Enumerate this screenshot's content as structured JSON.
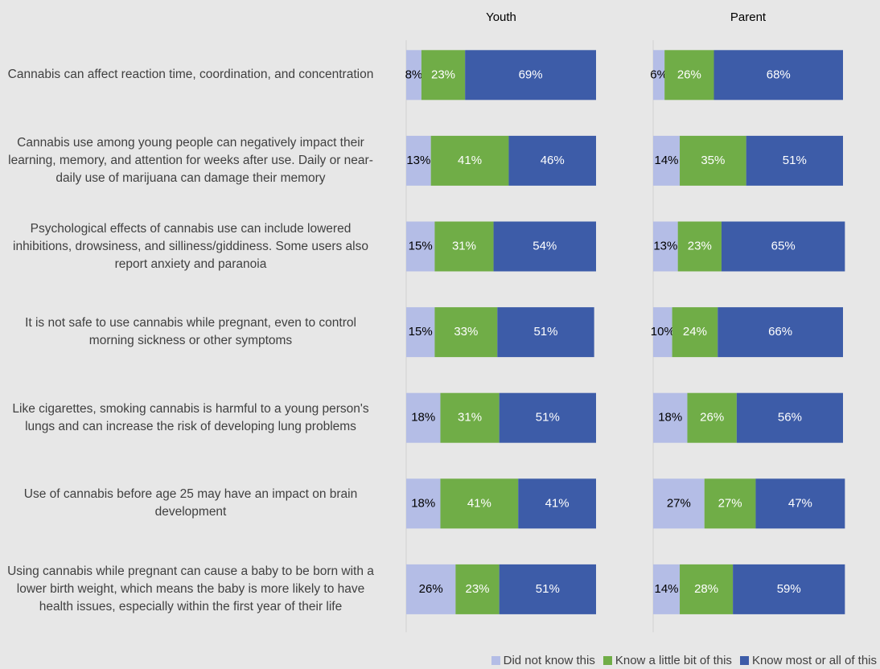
{
  "chart_data": {
    "type": "stacked_barh",
    "categories": [
      "Cannabis can affect reaction time, coordination, and concentration",
      "Cannabis use among young people can negatively impact their learning, memory, and attention for weeks after use.  Daily or near-daily use of marijuana can damage their memory",
      "Psychological effects of cannabis use can include lowered inhibitions, drowsiness, and silliness/giddiness.  Some users also report anxiety and paranoia",
      "It is not safe to use cannabis while pregnant, even to control morning sickness or other symptoms",
      "Like cigarettes, smoking cannabis is harmful to a young person's lungs and can increase the risk of developing lung problems",
      "Use of cannabis before age 25 may have an impact on brain development",
      "Using cannabis while pregnant can cause a baby to be born with a lower birth weight, which means the baby is more likely to have health issues, especially within the first year of their life"
    ],
    "legend": "bottom-right",
    "series": [
      {
        "name": "Did not know this",
        "color": "#b4bde6"
      },
      {
        "name": "Know a little bit of this",
        "color": "#70ad47"
      },
      {
        "name": "Know most or all of this",
        "color": "#3d5ca8"
      }
    ],
    "panels": [
      {
        "title": "Youth",
        "series": [
          {
            "values": [
              8,
              13,
              15,
              15,
              18,
              18,
              26
            ],
            "value_labels": [
              "8%",
              "13%",
              "15%",
              "15%",
              "18%",
              "18%",
              "26%"
            ]
          },
          {
            "values": [
              23,
              41,
              31,
              33,
              31,
              41,
              23
            ],
            "value_labels": [
              "23%",
              "41%",
              "31%",
              "33%",
              "31%",
              "41%",
              "23%"
            ]
          },
          {
            "values": [
              69,
              46,
              54,
              51,
              51,
              41,
              51
            ],
            "value_labels": [
              "69%",
              "46%",
              "54%",
              "51%",
              "51%",
              "41%",
              "51%"
            ]
          }
        ]
      },
      {
        "title": "Parent",
        "series": [
          {
            "values": [
              6,
              14,
              13,
              10,
              18,
              27,
              14
            ],
            "value_labels": [
              "6%",
              "14%",
              "13%",
              "10%",
              "18%",
              "27%",
              "14%"
            ]
          },
          {
            "values": [
              26,
              35,
              23,
              24,
              26,
              27,
              28
            ],
            "value_labels": [
              "26%",
              "35%",
              "23%",
              "24%",
              "26%",
              "27%",
              "28%"
            ]
          },
          {
            "values": [
              68,
              51,
              65,
              66,
              56,
              47,
              59
            ],
            "value_labels": [
              "68%",
              "51%",
              "65%",
              "66%",
              "56%",
              "47%",
              "59%"
            ]
          }
        ]
      }
    ]
  }
}
